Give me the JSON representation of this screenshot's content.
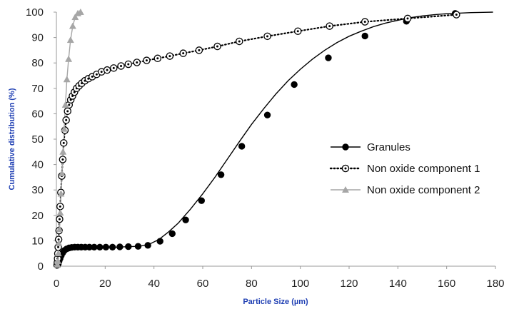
{
  "chart_data": {
    "type": "scatter",
    "xlabel": "Particle Size (µm)",
    "ylabel": "Cumulative distribution (%)",
    "xlim": [
      0,
      180
    ],
    "ylim": [
      0,
      100
    ],
    "xticks": [
      "0",
      "20",
      "40",
      "60",
      "80",
      "100",
      "120",
      "140",
      "160",
      "180"
    ],
    "yticks": [
      "0",
      "10",
      "20",
      "30",
      "40",
      "50",
      "60",
      "70",
      "80",
      "90",
      "100"
    ],
    "grid": false,
    "legend_position": "right",
    "series": [
      {
        "name": "Granules",
        "marker": "filled-circle",
        "line": "solid",
        "color": "#000000",
        "x": [
          0.5,
          0.8,
          1.1,
          1.5,
          2.0,
          2.6,
          3.3,
          4.2,
          5.2,
          6.3,
          7.5,
          8.8,
          10.2,
          11.8,
          13.5,
          15.5,
          17.8,
          20.3,
          23.0,
          26.0,
          29.5,
          33.5,
          37.5,
          42.5,
          47.5,
          53.0,
          59.5,
          67.5,
          76.0,
          86.5,
          97.5,
          111.5,
          126.5,
          143.5,
          163.5
        ],
        "y": [
          0.5,
          1.0,
          2.0,
          3.0,
          4.2,
          5.3,
          6.2,
          6.8,
          7.2,
          7.4,
          7.5,
          7.5,
          7.5,
          7.5,
          7.5,
          7.5,
          7.5,
          7.5,
          7.5,
          7.6,
          7.7,
          7.8,
          8.2,
          9.8,
          12.8,
          18.2,
          25.8,
          36.0,
          47.2,
          59.5,
          71.5,
          82.0,
          90.6,
          96.4,
          99.5
        ],
        "curve_x": [
          0,
          2,
          4,
          6,
          8,
          10,
          15,
          20,
          25,
          30,
          34,
          38,
          42,
          46,
          50,
          55,
          60,
          65,
          70,
          75,
          80,
          85,
          90,
          95,
          100,
          105,
          110,
          115,
          120,
          125,
          130,
          135,
          140,
          145,
          150,
          155,
          160,
          165,
          170,
          175,
          179
        ],
        "curve_y": [
          0,
          4.2,
          6.5,
          7.3,
          7.5,
          7.5,
          7.5,
          7.5,
          7.5,
          7.7,
          7.8,
          8.6,
          10.5,
          13.5,
          17,
          22.5,
          28.5,
          35,
          42,
          49,
          55.8,
          62,
          67.8,
          73,
          77.5,
          81.5,
          85,
          88,
          90.5,
          92.5,
          94.3,
          95.7,
          96.8,
          97.8,
          98.5,
          99.0,
          99.4,
          99.6,
          99.8,
          99.9,
          100
        ]
      },
      {
        "name": "Non oxide component 1",
        "marker": "open-circle-dot",
        "line": "dotted",
        "color": "#000000",
        "x": [
          0.3,
          0.4,
          0.5,
          0.6,
          0.75,
          0.9,
          1.1,
          1.3,
          1.55,
          1.85,
          2.2,
          2.6,
          3.0,
          3.5,
          4.0,
          4.6,
          5.2,
          5.9,
          6.6,
          7.4,
          8.3,
          9.3,
          10.4,
          11.7,
          13.1,
          14.7,
          16.5,
          18.5,
          20.8,
          23.5,
          26.5,
          29.5,
          33.0,
          37.0,
          41.5,
          46.5,
          52.0,
          58.5,
          66.0,
          75.0,
          86.5,
          99.0,
          112.0,
          126.5,
          144.0,
          164.0
        ],
        "y": [
          0.5,
          1.5,
          3.0,
          5.0,
          7.5,
          10.5,
          14.0,
          18.5,
          23.5,
          29.0,
          35.5,
          42.0,
          48.5,
          53.5,
          57.5,
          61.0,
          63.5,
          65.5,
          67.0,
          68.5,
          70.0,
          71.0,
          72.0,
          73.0,
          73.8,
          74.6,
          75.5,
          76.5,
          77.2,
          78.0,
          78.8,
          79.5,
          80.2,
          81.0,
          81.8,
          82.7,
          83.8,
          85.0,
          86.5,
          88.5,
          90.5,
          92.5,
          94.5,
          96.2,
          97.5,
          99.0
        ]
      },
      {
        "name": "Non oxide component 2",
        "marker": "triangle",
        "line": "solid",
        "color": "#a6a6a6",
        "x": [
          0.4,
          0.6,
          0.8,
          1.0,
          1.3,
          1.6,
          1.9,
          2.3,
          2.7,
          3.2,
          3.7,
          4.3,
          5.0,
          5.8,
          6.7,
          7.7,
          8.8,
          9.9
        ],
        "y": [
          0.5,
          2.0,
          5.0,
          9.0,
          14.5,
          21.0,
          28.5,
          36.5,
          45.0,
          54.0,
          63.5,
          73.5,
          81.5,
          89.0,
          94.5,
          98.0,
          99.5,
          100.0
        ]
      }
    ]
  }
}
